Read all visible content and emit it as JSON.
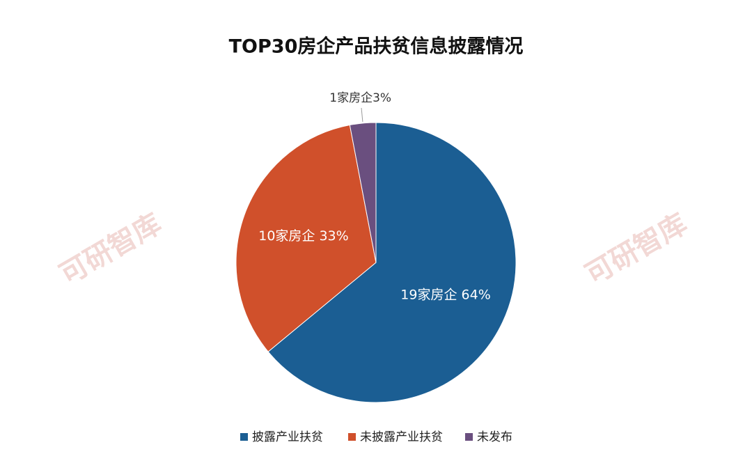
{
  "chart_data": {
    "type": "pie",
    "title": "TOP30房企产品扶贫信息披露情况",
    "categories": [
      "披露产业扶贫",
      "未披露产业扶贫",
      "未发布"
    ],
    "values": [
      64,
      33,
      3
    ],
    "value_labels": [
      "19家房企 64%",
      "10家房企 33%",
      "1家房企3%"
    ],
    "colors": [
      "#1b5e93",
      "#d0502b",
      "#6a4f7f"
    ],
    "legend": "bottom",
    "watermark": "可研智库"
  }
}
